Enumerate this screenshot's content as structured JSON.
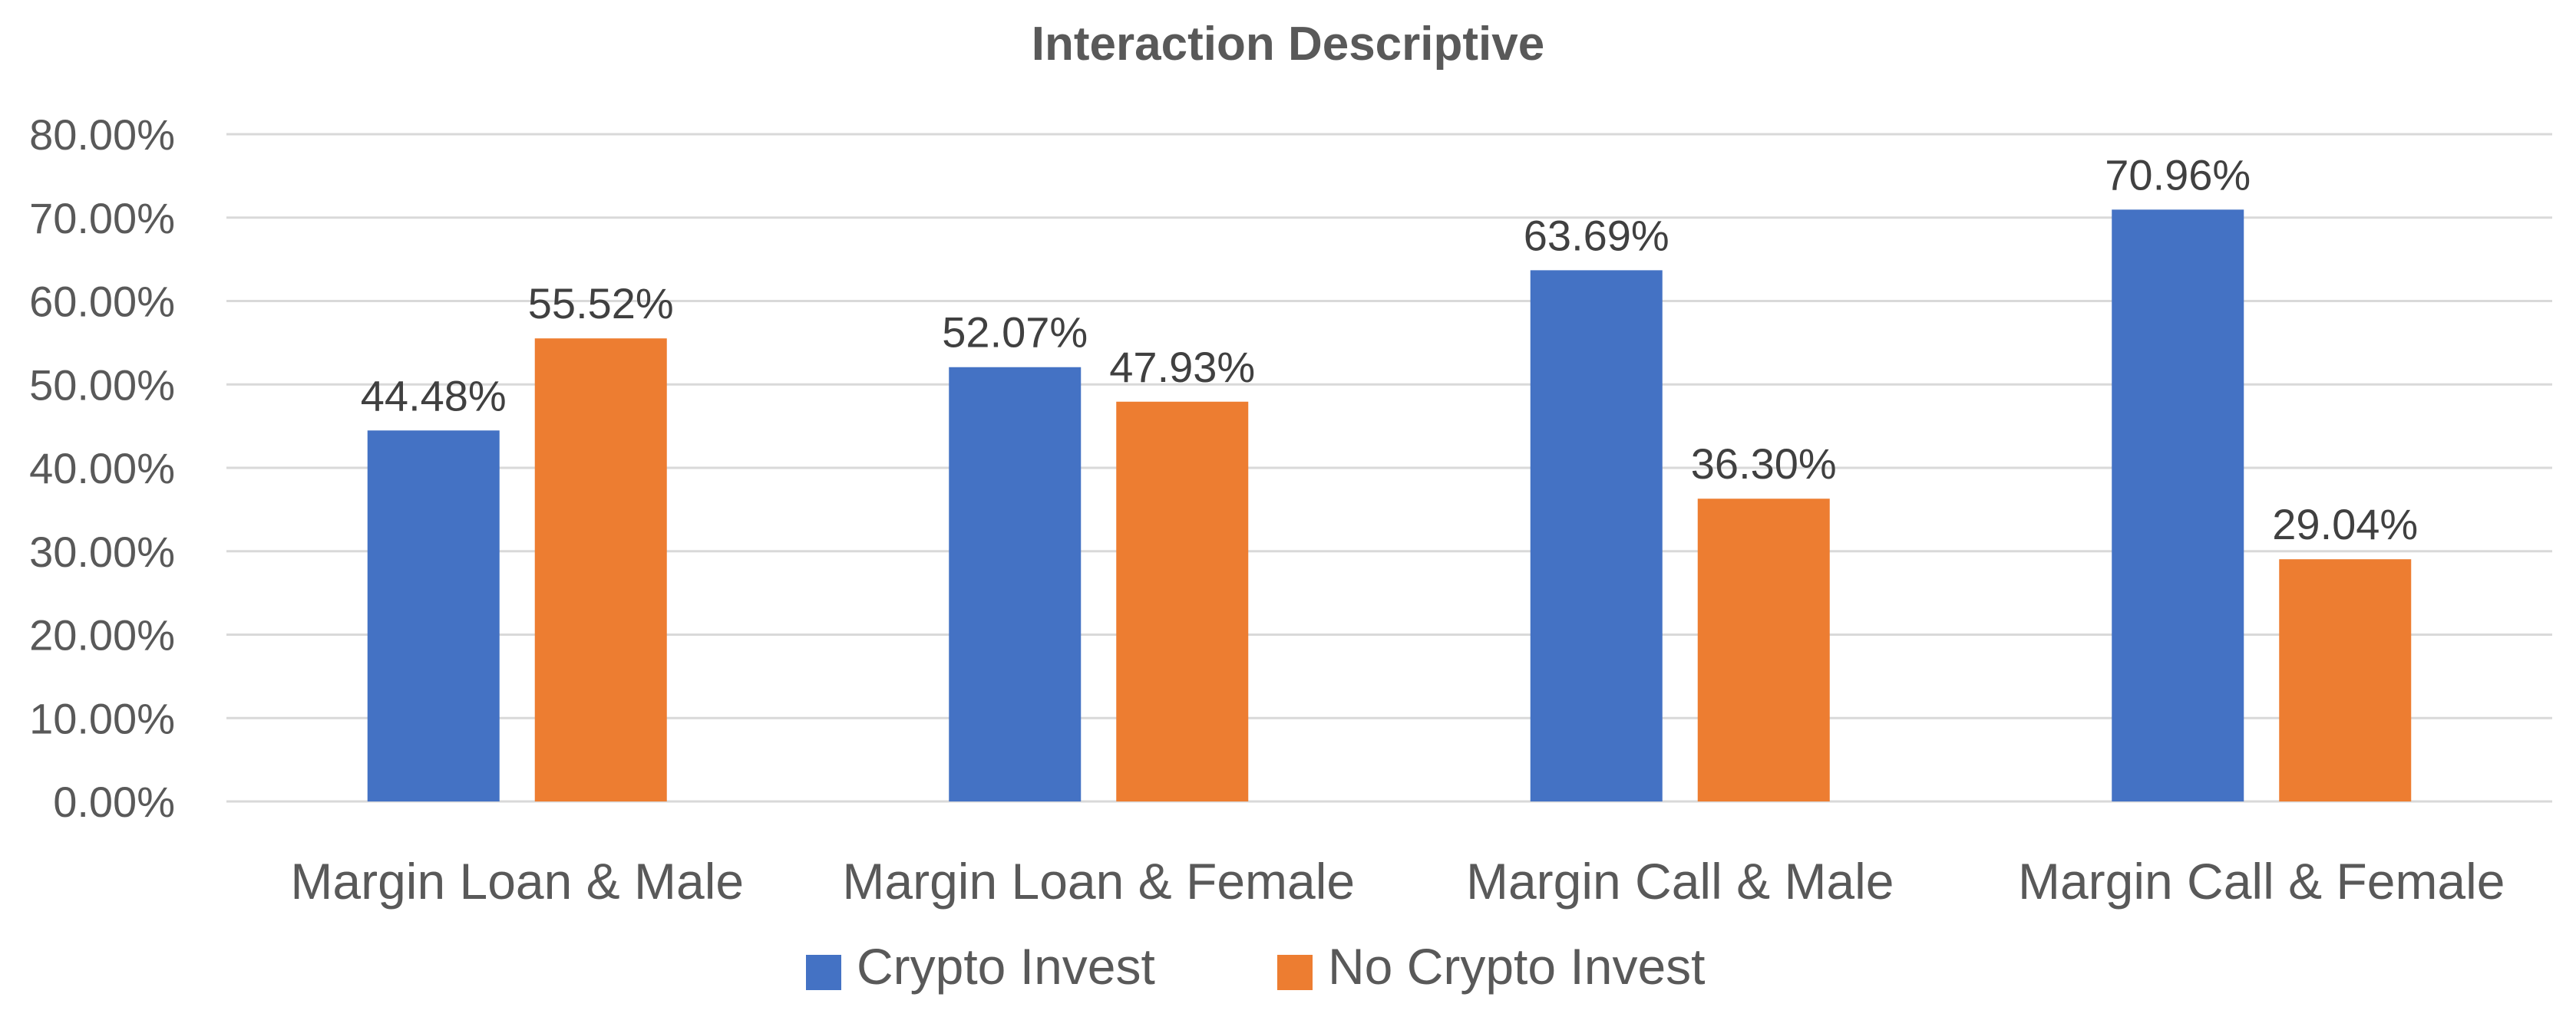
{
  "chart_data": {
    "type": "bar",
    "title": "Interaction Descriptive",
    "xlabel": "",
    "ylabel": "",
    "categories": [
      "Margin Loan & Male",
      "Margin Loan & Female",
      "Margin Call & Male",
      "Margin Call & Female"
    ],
    "series": [
      {
        "name": "Crypto Invest",
        "color": "#4472C4",
        "values": [
          44.48,
          52.07,
          63.69,
          70.96
        ],
        "labels": [
          "44.48%",
          "52.07%",
          "63.69%",
          "70.96%"
        ]
      },
      {
        "name": "No Crypto Invest",
        "color": "#ED7D31",
        "values": [
          55.52,
          47.93,
          36.3,
          29.04
        ],
        "labels": [
          "55.52%",
          "47.93%",
          "36.30%",
          "29.04%"
        ]
      }
    ],
    "ylim": [
      0,
      80
    ],
    "yticks": [
      0,
      10,
      20,
      30,
      40,
      50,
      60,
      70,
      80
    ],
    "ytick_labels": [
      "0.00%",
      "10.00%",
      "20.00%",
      "30.00%",
      "40.00%",
      "50.00%",
      "60.00%",
      "70.00%",
      "80.00%"
    ],
    "grid": true,
    "legend_position": "bottom"
  }
}
